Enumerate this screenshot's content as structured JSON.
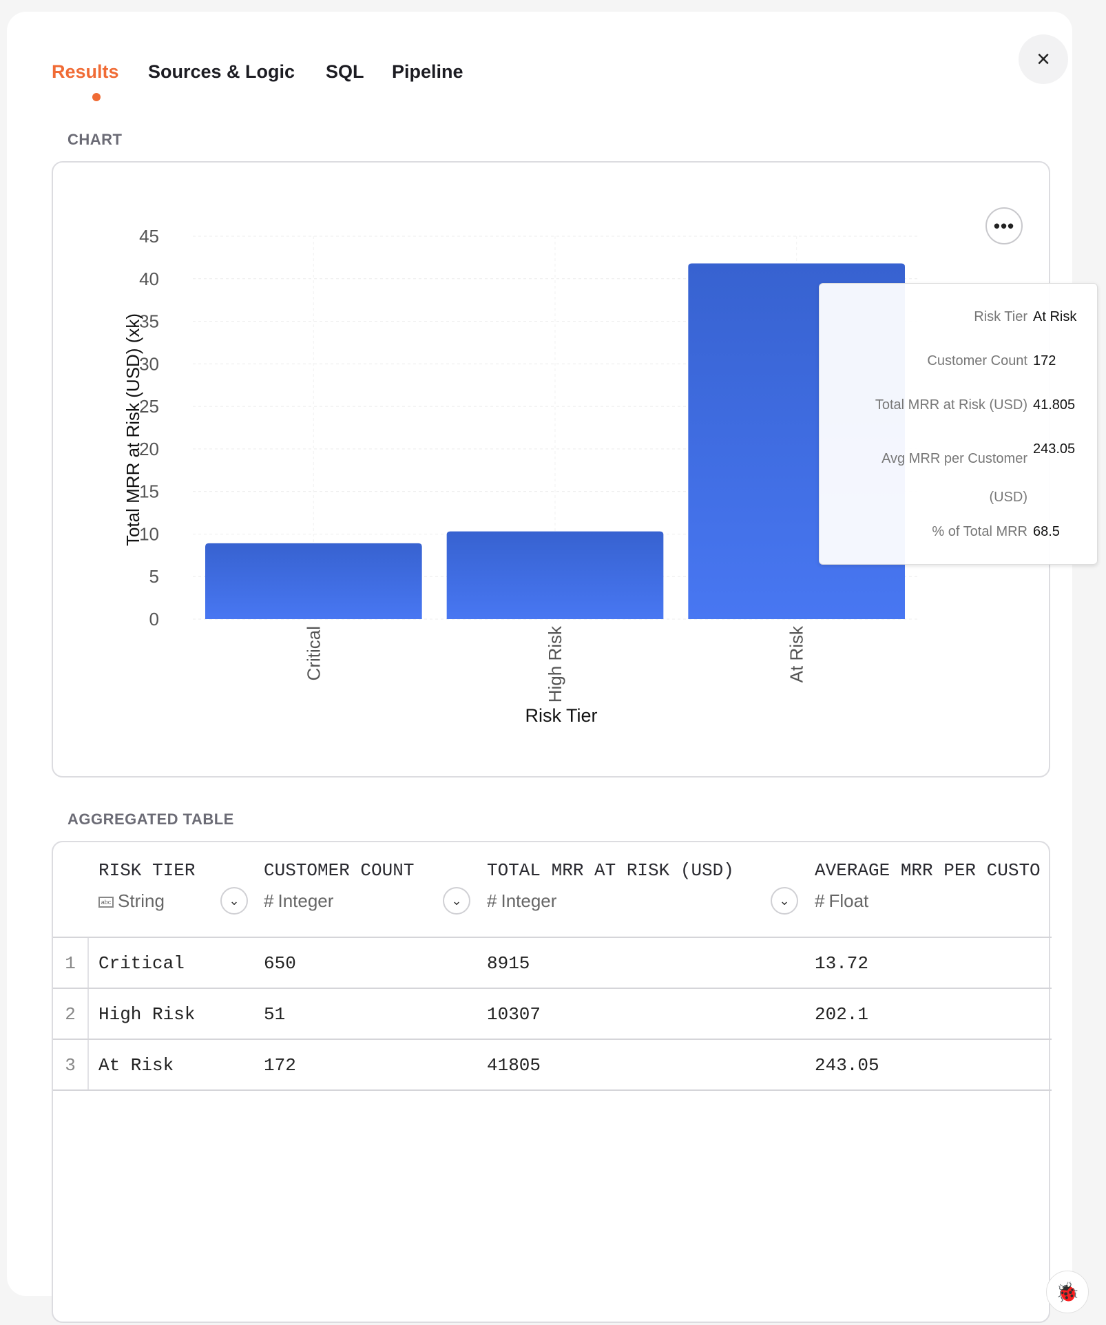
{
  "tabs": [
    {
      "label": "Results",
      "active": true
    },
    {
      "label": "Sources & Logic"
    },
    {
      "label": "SQL"
    },
    {
      "label": "Pipeline"
    }
  ],
  "close_icon": "×",
  "chart_section_label": "CHART",
  "more_icon": "•••",
  "chart_data": {
    "type": "bar",
    "categories": [
      "Critical",
      "High Risk",
      "At Risk"
    ],
    "values": [
      8.915,
      10.307,
      41.805
    ],
    "xlabel": "Risk Tier",
    "ylabel": "Total MRR at Risk (USD) (xk)",
    "ylim": [
      0,
      45
    ],
    "yticks": [
      0,
      5,
      10,
      15,
      20,
      25,
      30,
      35,
      40,
      45
    ],
    "grid": true,
    "bar_color_top": "#3762d0",
    "bar_color_bottom": "#4877f2"
  },
  "tooltip": [
    {
      "key": "Risk Tier",
      "value": "At Risk"
    },
    {
      "key": "Customer Count",
      "value": "172"
    },
    {
      "key": "Total MRR at Risk (USD)",
      "value": "41.805"
    },
    {
      "key": "Avg MRR per Customer (USD)",
      "value": "243.05"
    },
    {
      "key": "% of Total MRR",
      "value": "68.5"
    }
  ],
  "table_section_label": "AGGREGATED TABLE",
  "table": {
    "columns": [
      {
        "name": "RISK TIER",
        "type": "String",
        "type_icon": "abc"
      },
      {
        "name": "CUSTOMER COUNT",
        "type": "Integer",
        "type_icon": "#"
      },
      {
        "name": "TOTAL MRR AT RISK (USD)",
        "type": "Integer",
        "type_icon": "#"
      },
      {
        "name": "AVERAGE MRR PER CUSTO",
        "type": "Float",
        "type_icon": "#"
      }
    ],
    "rows": [
      {
        "n": "1",
        "cells": [
          "Critical",
          "650",
          "8915",
          "13.72"
        ]
      },
      {
        "n": "2",
        "cells": [
          "High Risk",
          "51",
          "10307",
          "202.1"
        ]
      },
      {
        "n": "3",
        "cells": [
          "At Risk",
          "172",
          "41805",
          "243.05"
        ]
      }
    ]
  },
  "bug_icon": "🐞"
}
